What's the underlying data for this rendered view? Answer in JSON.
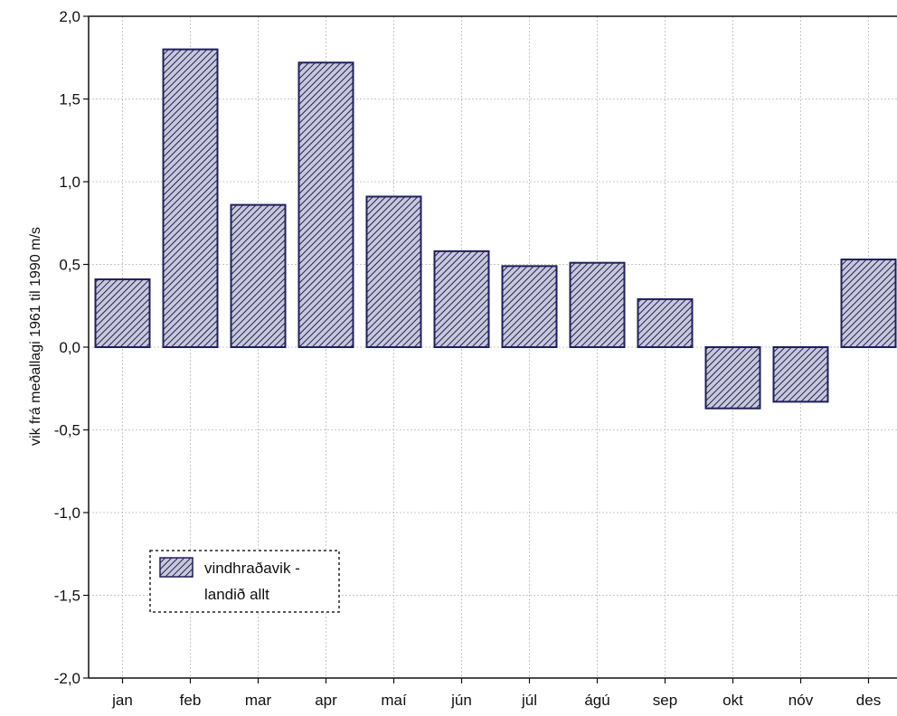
{
  "chart_data": {
    "type": "bar",
    "categories": [
      "jan",
      "feb",
      "mar",
      "apr",
      "maí",
      "jún",
      "júl",
      "ágú",
      "sep",
      "okt",
      "nóv",
      "des"
    ],
    "series": [
      {
        "name": "vindhraðavik - landið allt",
        "values": [
          0.41,
          1.8,
          0.86,
          1.72,
          0.91,
          0.58,
          0.49,
          0.51,
          0.29,
          -0.37,
          -0.33,
          0.53
        ]
      }
    ],
    "ylabel": "vik frá meðallagi 1961 til 1990 m/s",
    "xlabel": "",
    "ylim": [
      -2.0,
      2.0
    ],
    "yticks": [
      2.0,
      1.5,
      1.0,
      0.5,
      0.0,
      -0.5,
      -1.0,
      -1.5,
      -2.0
    ],
    "ytick_labels": [
      "2,0",
      "1,5",
      "1,0",
      "0,5",
      "0,0",
      "-0,5",
      "-1,0",
      "-1,5",
      "-2,0"
    ],
    "grid": true,
    "legend": {
      "position": "bottom-left",
      "line1": "vindhraðavik -",
      "line2": "landið allt"
    },
    "colors": {
      "bar_stroke": "#1f1f5e",
      "bar_fill": "#c8c8d8",
      "hatch": "#1f1f5e",
      "grid": "#c8c8c8"
    }
  }
}
